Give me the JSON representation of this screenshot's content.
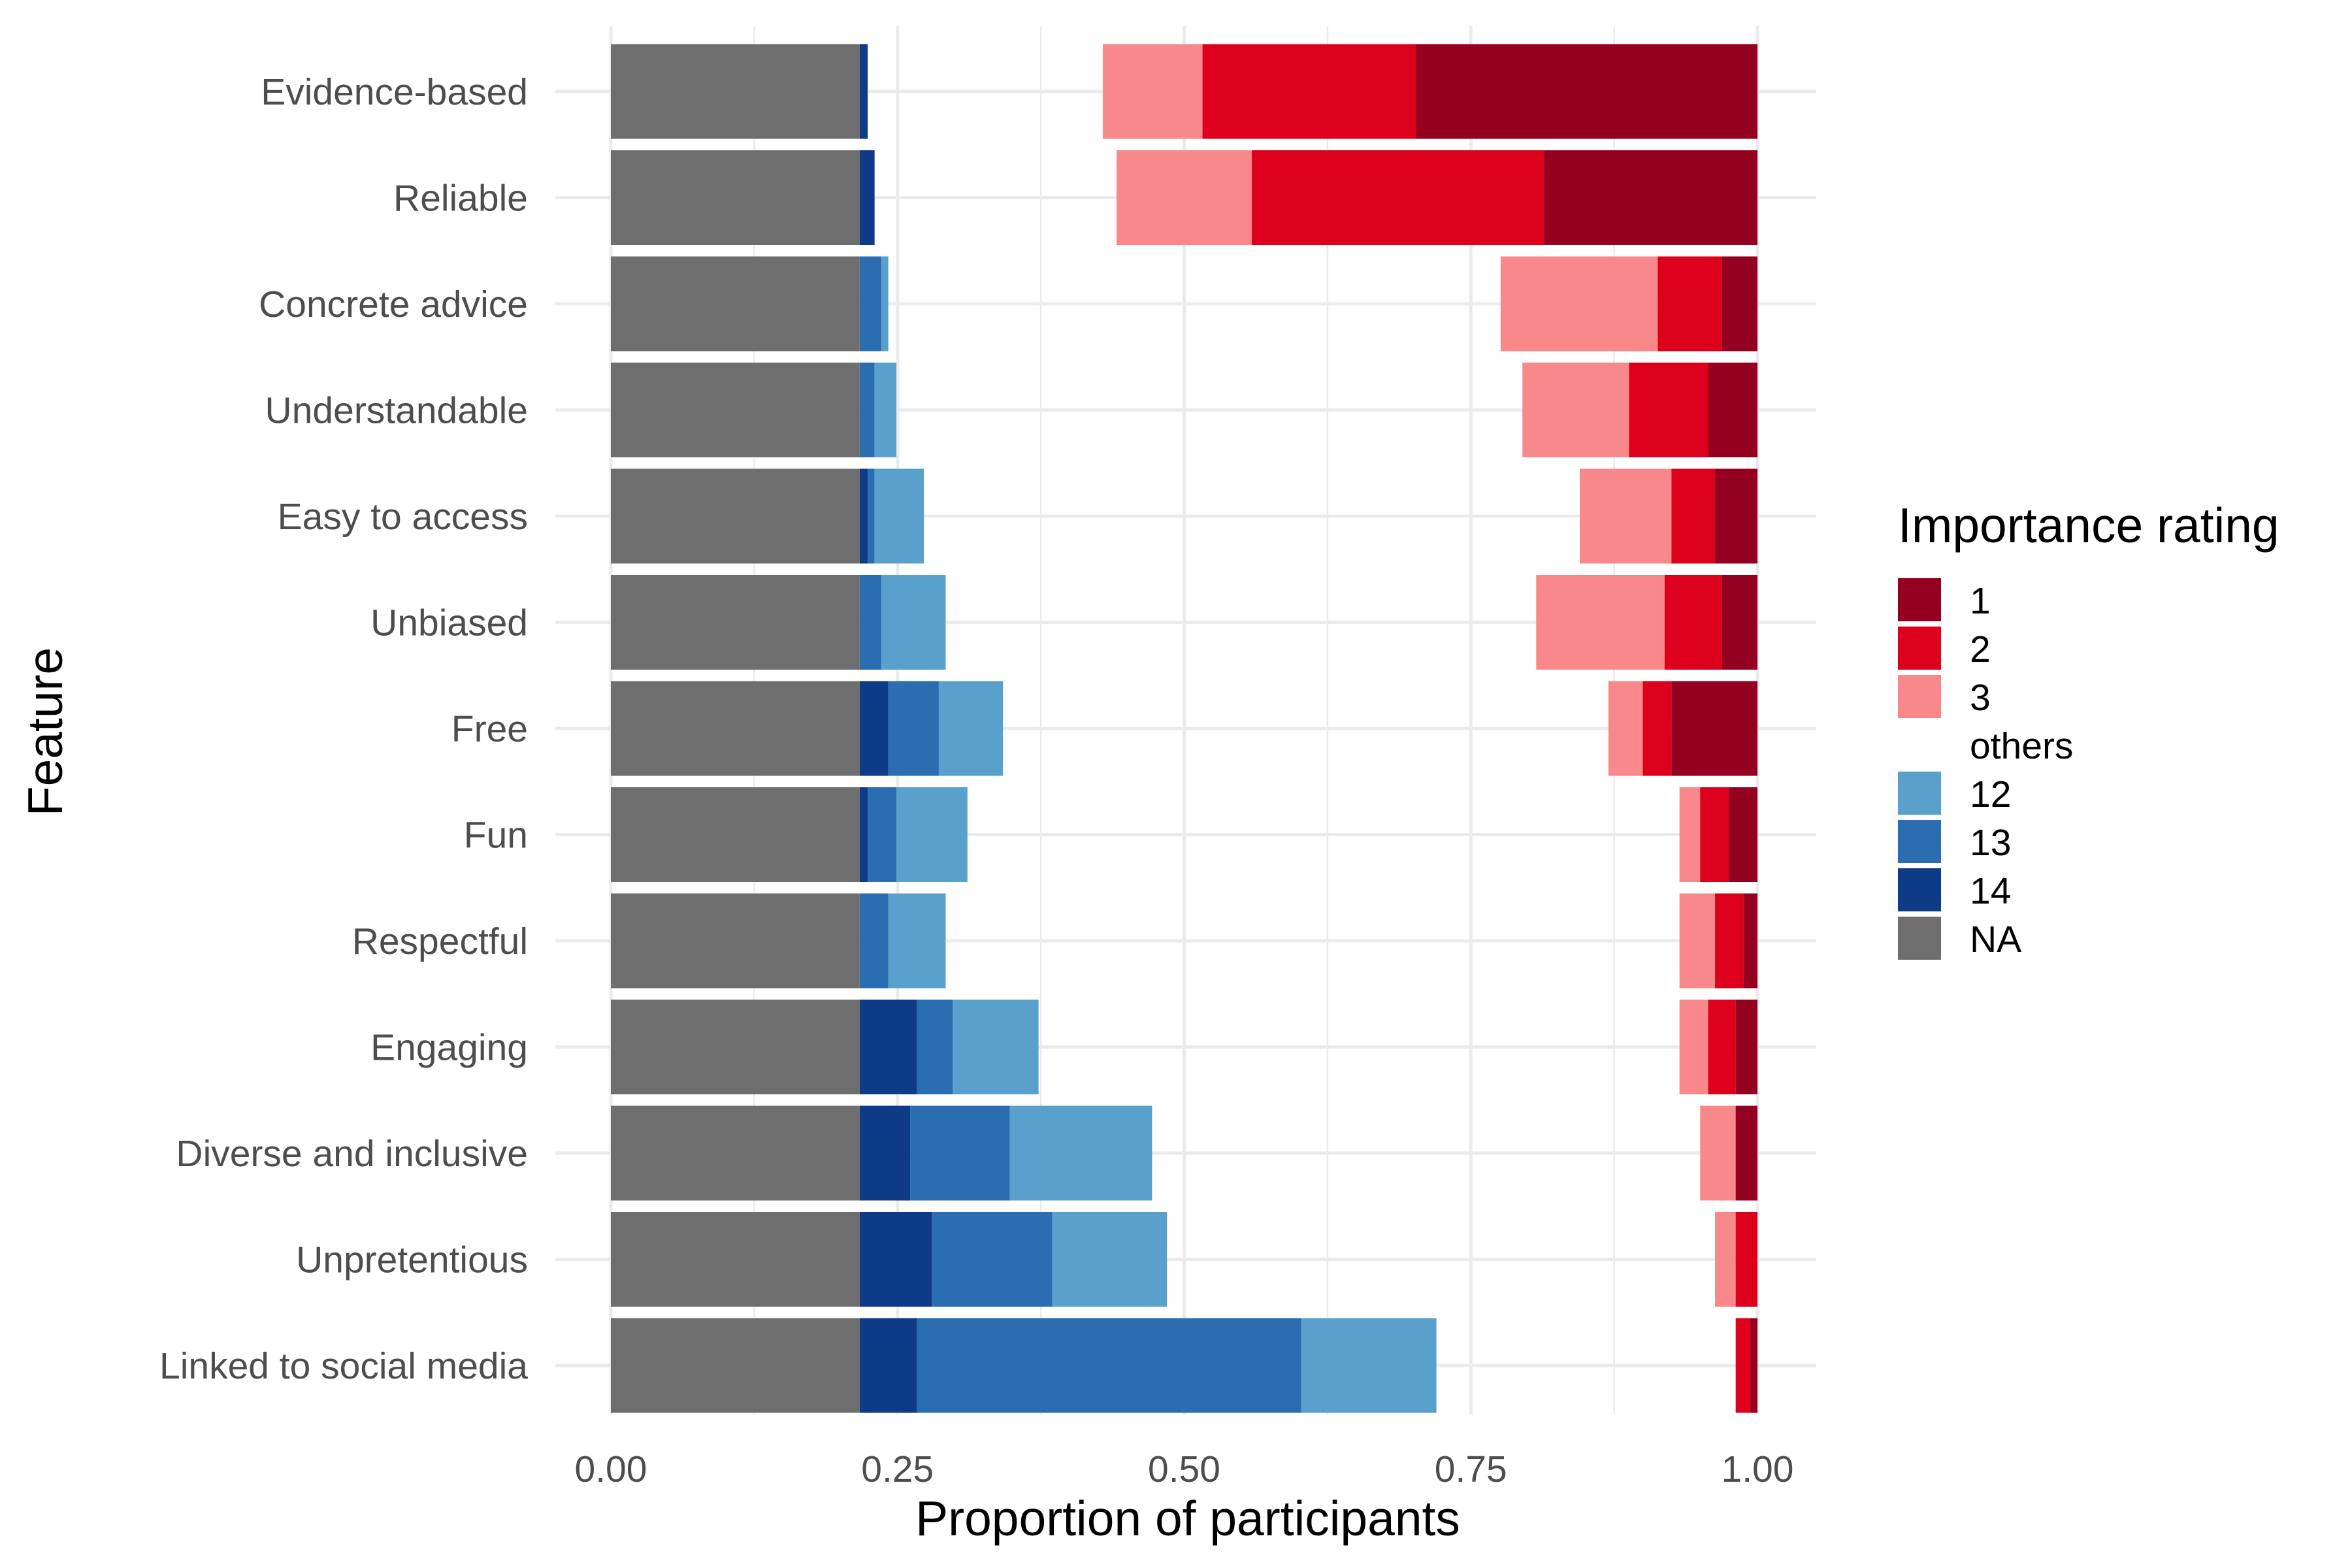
{
  "chart_data": {
    "type": "bar",
    "orientation": "horizontal",
    "stacked": true,
    "xlabel": "Proportion of participants",
    "ylabel": "Feature",
    "xlim": [
      0,
      1
    ],
    "x_ticks": [
      "0.00",
      "0.25",
      "0.50",
      "0.75",
      "1.00"
    ],
    "x_tick_values": [
      0,
      0.25,
      0.5,
      0.75,
      1
    ],
    "grid": true,
    "legend_position": "right",
    "legend_title": "Importance rating",
    "legend_entries": [
      {
        "label": "1",
        "color": "#94001f"
      },
      {
        "label": "2",
        "color": "#dc001c"
      },
      {
        "label": "3",
        "color": "#f8888a"
      },
      {
        "label": "others",
        "color": "#ffffff"
      },
      {
        "label": "12",
        "color": "#5aa0cc"
      },
      {
        "label": "13",
        "color": "#2a6db0"
      },
      {
        "label": "14",
        "color": "#0e3b87"
      },
      {
        "label": "NA",
        "color": "#6e6e6e"
      }
    ],
    "categories": [
      "Evidence-based",
      "Reliable",
      "Concrete advice",
      "Understandable",
      "Easy to access",
      "Unbiased",
      "Free",
      "Fun",
      "Respectful",
      "Engaging",
      "Diverse and inclusive",
      "Unpretentious",
      "Linked to social media"
    ],
    "series": [
      {
        "name": "NA",
        "color": "#6e6e6e",
        "segments": [
          [
            0,
            0.217
          ],
          [
            0,
            0.217
          ],
          [
            0,
            0.217
          ],
          [
            0,
            0.217
          ],
          [
            0,
            0.217
          ],
          [
            0,
            0.217
          ],
          [
            0,
            0.217
          ],
          [
            0,
            0.217
          ],
          [
            0,
            0.217
          ],
          [
            0,
            0.217
          ],
          [
            0,
            0.217
          ],
          [
            0,
            0.217
          ],
          [
            0,
            0.217
          ]
        ]
      },
      {
        "name": "14",
        "color": "#0e3b87",
        "segments": [
          [
            0.217,
            0.224
          ],
          [
            0.217,
            0.23
          ],
          [
            0.217,
            0.217
          ],
          [
            0.217,
            0.217
          ],
          [
            0.217,
            0.224
          ],
          [
            0.217,
            0.217
          ],
          [
            0.217,
            0.242
          ],
          [
            0.217,
            0.224
          ],
          [
            0.217,
            0.217
          ],
          [
            0.217,
            0.267
          ],
          [
            0.217,
            0.261
          ],
          [
            0.217,
            0.28
          ],
          [
            0.217,
            0.267
          ]
        ]
      },
      {
        "name": "13",
        "color": "#2a6db0",
        "segments": [
          [
            0.224,
            0.224
          ],
          [
            0.23,
            0.23
          ],
          [
            0.217,
            0.236
          ],
          [
            0.217,
            0.23
          ],
          [
            0.224,
            0.23
          ],
          [
            0.217,
            0.236
          ],
          [
            0.242,
            0.286
          ],
          [
            0.224,
            0.249
          ],
          [
            0.217,
            0.242
          ],
          [
            0.267,
            0.298
          ],
          [
            0.261,
            0.348
          ],
          [
            0.28,
            0.385
          ],
          [
            0.267,
            0.602
          ]
        ]
      },
      {
        "name": "12",
        "color": "#5aa0cc",
        "segments": [
          [
            0.224,
            0.224
          ],
          [
            0.23,
            0.23
          ],
          [
            0.236,
            0.242
          ],
          [
            0.23,
            0.249
          ],
          [
            0.23,
            0.273
          ],
          [
            0.236,
            0.292
          ],
          [
            0.286,
            0.342
          ],
          [
            0.249,
            0.311
          ],
          [
            0.242,
            0.292
          ],
          [
            0.298,
            0.373
          ],
          [
            0.348,
            0.472
          ],
          [
            0.385,
            0.485
          ],
          [
            0.602,
            0.72
          ]
        ]
      },
      {
        "name": "3",
        "color": "#f8888a",
        "segments": [
          [
            0.429,
            0.516
          ],
          [
            0.441,
            0.559
          ],
          [
            0.776,
            0.913
          ],
          [
            0.795,
            0.888
          ],
          [
            0.845,
            0.925
          ],
          [
            0.807,
            0.919
          ],
          [
            0.87,
            0.9
          ],
          [
            0.932,
            0.95
          ],
          [
            0.932,
            0.963
          ],
          [
            0.932,
            0.957
          ],
          [
            0.95,
            0.981
          ],
          [
            0.963,
            0.981
          ],
          [
            1.0,
            1.0
          ]
        ]
      },
      {
        "name": "2",
        "color": "#dc001c",
        "segments": [
          [
            0.516,
            0.702
          ],
          [
            0.559,
            0.814
          ],
          [
            0.913,
            0.969
          ],
          [
            0.888,
            0.957
          ],
          [
            0.925,
            0.963
          ],
          [
            0.919,
            0.969
          ],
          [
            0.9,
            0.925
          ],
          [
            0.95,
            0.975
          ],
          [
            0.963,
            0.988
          ],
          [
            0.957,
            0.981
          ],
          [
            0.981,
            0.981
          ],
          [
            0.981,
            1.0
          ],
          [
            0.981,
            0.994
          ]
        ]
      },
      {
        "name": "1",
        "color": "#94001f",
        "segments": [
          [
            0.702,
            1.0
          ],
          [
            0.814,
            1.0
          ],
          [
            0.969,
            1.0
          ],
          [
            0.957,
            1.0
          ],
          [
            0.963,
            1.0
          ],
          [
            0.969,
            1.0
          ],
          [
            0.925,
            1.0
          ],
          [
            0.975,
            1.0
          ],
          [
            0.988,
            1.0
          ],
          [
            0.981,
            1.0
          ],
          [
            0.981,
            1.0
          ],
          [
            1.0,
            1.0
          ],
          [
            0.994,
            1.0
          ]
        ]
      }
    ]
  }
}
